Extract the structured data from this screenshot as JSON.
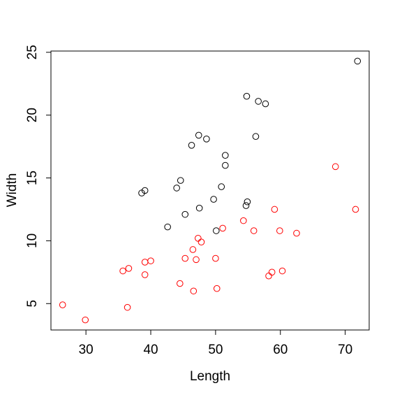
{
  "chart_data": {
    "type": "scatter",
    "xlabel": "Length",
    "ylabel": "Width",
    "xlim": [
      24.6,
      73.7
    ],
    "ylim": [
      2.9,
      25.1
    ],
    "xticks": [
      30,
      40,
      50,
      60,
      70
    ],
    "yticks": [
      5,
      10,
      15,
      20,
      25
    ],
    "series": [
      {
        "color": "#000000",
        "x": [
          71.9,
          54.8,
          56.6,
          57.7,
          47.4,
          48.6,
          56.2,
          46.3,
          51.5,
          51.5,
          44.6,
          44.0,
          39.1,
          38.6,
          50.9,
          49.7,
          47.5,
          45.3,
          54.9,
          54.7,
          42.6,
          50.1
        ],
        "values": [
          24.3,
          21.5,
          21.1,
          20.9,
          18.4,
          18.1,
          18.3,
          17.6,
          16.8,
          16.0,
          14.8,
          14.2,
          14.0,
          13.8,
          14.3,
          13.3,
          12.6,
          12.1,
          13.1,
          12.8,
          11.1,
          10.8
        ]
      },
      {
        "color": "#ff0000",
        "x": [
          26.4,
          29.9,
          36.4,
          35.7,
          36.6,
          39.1,
          40.0,
          39.1,
          44.5,
          46.6,
          50.2,
          45.3,
          47.0,
          50.0,
          46.5,
          47.3,
          47.8,
          51.1,
          54.3,
          55.9,
          59.1,
          59.9,
          62.5,
          68.5,
          71.6,
          58.2,
          58.7,
          60.3
        ],
        "values": [
          4.9,
          3.7,
          4.7,
          7.6,
          7.8,
          8.3,
          8.4,
          7.3,
          6.6,
          6.0,
          6.2,
          8.6,
          8.5,
          8.6,
          9.3,
          10.2,
          9.9,
          11.0,
          11.6,
          10.8,
          12.5,
          10.8,
          10.6,
          15.9,
          12.5,
          7.2,
          7.5,
          7.6
        ]
      }
    ]
  }
}
